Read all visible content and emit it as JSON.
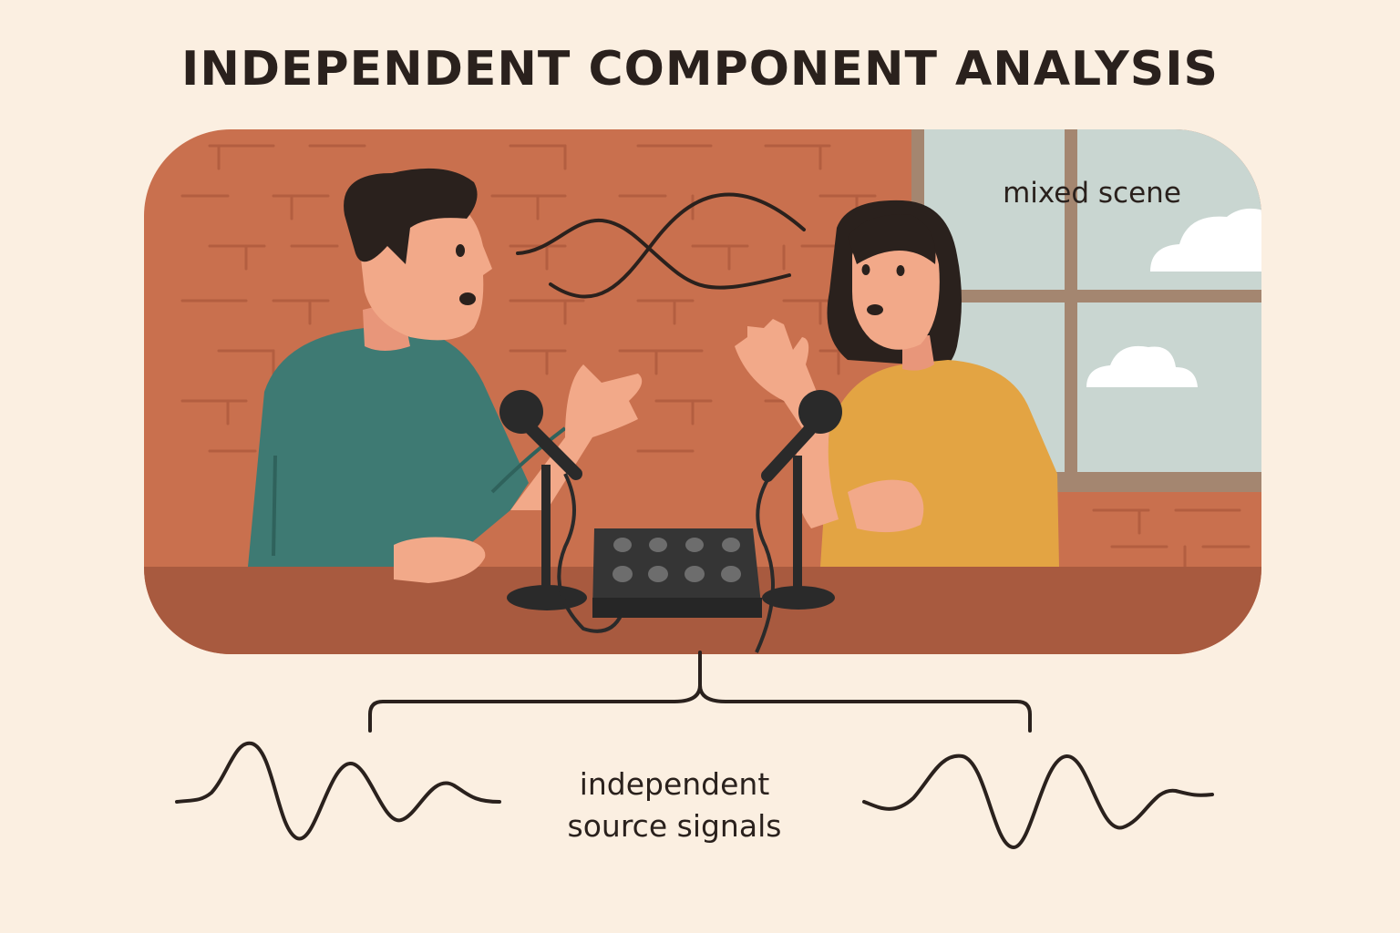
{
  "title": "INDEPENDENT COMPONENT ANALYSIS",
  "scene": {
    "label": "mixed scene",
    "figures": [
      "man-speaker",
      "woman-speaker"
    ],
    "objects": [
      "microphone-left",
      "microphone-right",
      "audio-mixer",
      "brick-wall",
      "window",
      "clouds",
      "mixed-waves"
    ]
  },
  "sources": {
    "label_line1": "independent",
    "label_line2": "source signals",
    "signals": [
      "source-signal-left",
      "source-signal-right"
    ]
  },
  "colors": {
    "background": "#fbefe1",
    "brick_wall": "#c9704e",
    "table": "#a85a3f",
    "window_sky": "#c9d6d1",
    "man_shirt": "#3e7a73",
    "woman_shirt": "#e3a443",
    "skin": "#f2a989",
    "ink": "#2a211d"
  }
}
